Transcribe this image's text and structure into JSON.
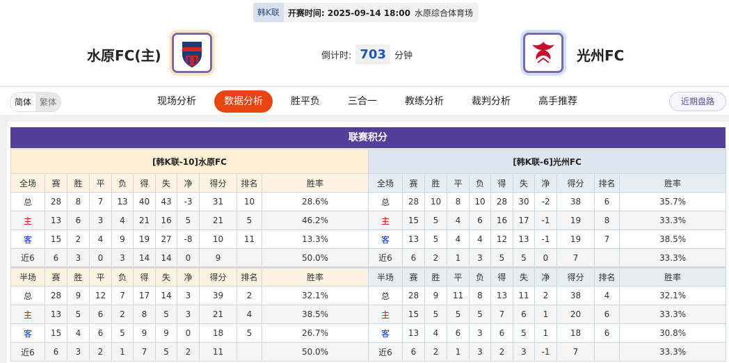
{
  "match": {
    "league": "韩K联",
    "time_label": "开赛时间:",
    "time": "2025-09-14 18:00",
    "venue": "水原综合体育场"
  },
  "home": {
    "name": "水原FC(主)",
    "logo_bg": "#fde6c4"
  },
  "away": {
    "name": "光州FC",
    "logo_bg": "#d2e1f8"
  },
  "countdown": {
    "label": "倒计时:",
    "value": "703",
    "unit": "分钟"
  },
  "lang": {
    "simplified": "简体",
    "traditional": "繁体"
  },
  "tabs": [
    "现场分析",
    "数据分析",
    "胜平负",
    "三合一",
    "教练分析",
    "裁判分析",
    "高手推荐"
  ],
  "active_tab": 1,
  "recent_button": "近期盘路",
  "standings": {
    "title": "联赛积分",
    "full_header": [
      "全场",
      "赛",
      "胜",
      "平",
      "负",
      "得",
      "失",
      "净",
      "得分",
      "排名",
      "胜率"
    ],
    "half_header": [
      "半场",
      "赛",
      "胜",
      "平",
      "负",
      "得",
      "失",
      "净",
      "得分",
      "排名",
      "胜率"
    ],
    "home": {
      "team": "[韩K联-10]水原FC",
      "full": [
        [
          "总",
          "28",
          "8",
          "7",
          "13",
          "40",
          "43",
          "-3",
          "31",
          "10",
          "28.6%"
        ],
        [
          "主",
          "13",
          "6",
          "3",
          "4",
          "21",
          "16",
          "5",
          "21",
          "5",
          "46.2%"
        ],
        [
          "客",
          "15",
          "2",
          "4",
          "9",
          "19",
          "27",
          "-8",
          "10",
          "11",
          "13.3%"
        ],
        [
          "近6",
          "6",
          "3",
          "0",
          "3",
          "14",
          "14",
          "0",
          "9",
          "",
          "50.0%"
        ]
      ],
      "half": [
        [
          "总",
          "28",
          "9",
          "12",
          "7",
          "17",
          "14",
          "3",
          "39",
          "2",
          "32.1%"
        ],
        [
          "主",
          "13",
          "5",
          "6",
          "2",
          "8",
          "5",
          "3",
          "21",
          "4",
          "38.5%"
        ],
        [
          "客",
          "15",
          "4",
          "6",
          "5",
          "9",
          "9",
          "0",
          "18",
          "5",
          "26.7%"
        ],
        [
          "近6",
          "6",
          "3",
          "2",
          "1",
          "7",
          "5",
          "2",
          "11",
          "",
          "50.0%"
        ]
      ]
    },
    "away": {
      "team": "[韩K联-6]光州FC",
      "full": [
        [
          "总",
          "28",
          "10",
          "8",
          "10",
          "28",
          "30",
          "-2",
          "38",
          "6",
          "35.7%"
        ],
        [
          "主",
          "15",
          "5",
          "4",
          "6",
          "16",
          "17",
          "-1",
          "19",
          "8",
          "33.3%"
        ],
        [
          "客",
          "13",
          "5",
          "4",
          "4",
          "12",
          "13",
          "-1",
          "19",
          "7",
          "38.5%"
        ],
        [
          "近6",
          "6",
          "2",
          "1",
          "3",
          "5",
          "5",
          "0",
          "7",
          "",
          "33.3%"
        ]
      ],
      "half": [
        [
          "总",
          "28",
          "9",
          "11",
          "8",
          "13",
          "11",
          "2",
          "38",
          "4",
          "32.1%"
        ],
        [
          "主",
          "15",
          "5",
          "5",
          "5",
          "7",
          "6",
          "1",
          "20",
          "6",
          "33.3%"
        ],
        [
          "客",
          "13",
          "4",
          "6",
          "3",
          "6",
          "5",
          "1",
          "18",
          "6",
          "30.8%"
        ],
        [
          "近6",
          "6",
          "2",
          "1",
          "3",
          "2",
          "3",
          "-1",
          "7",
          "",
          "33.3%"
        ]
      ]
    }
  }
}
